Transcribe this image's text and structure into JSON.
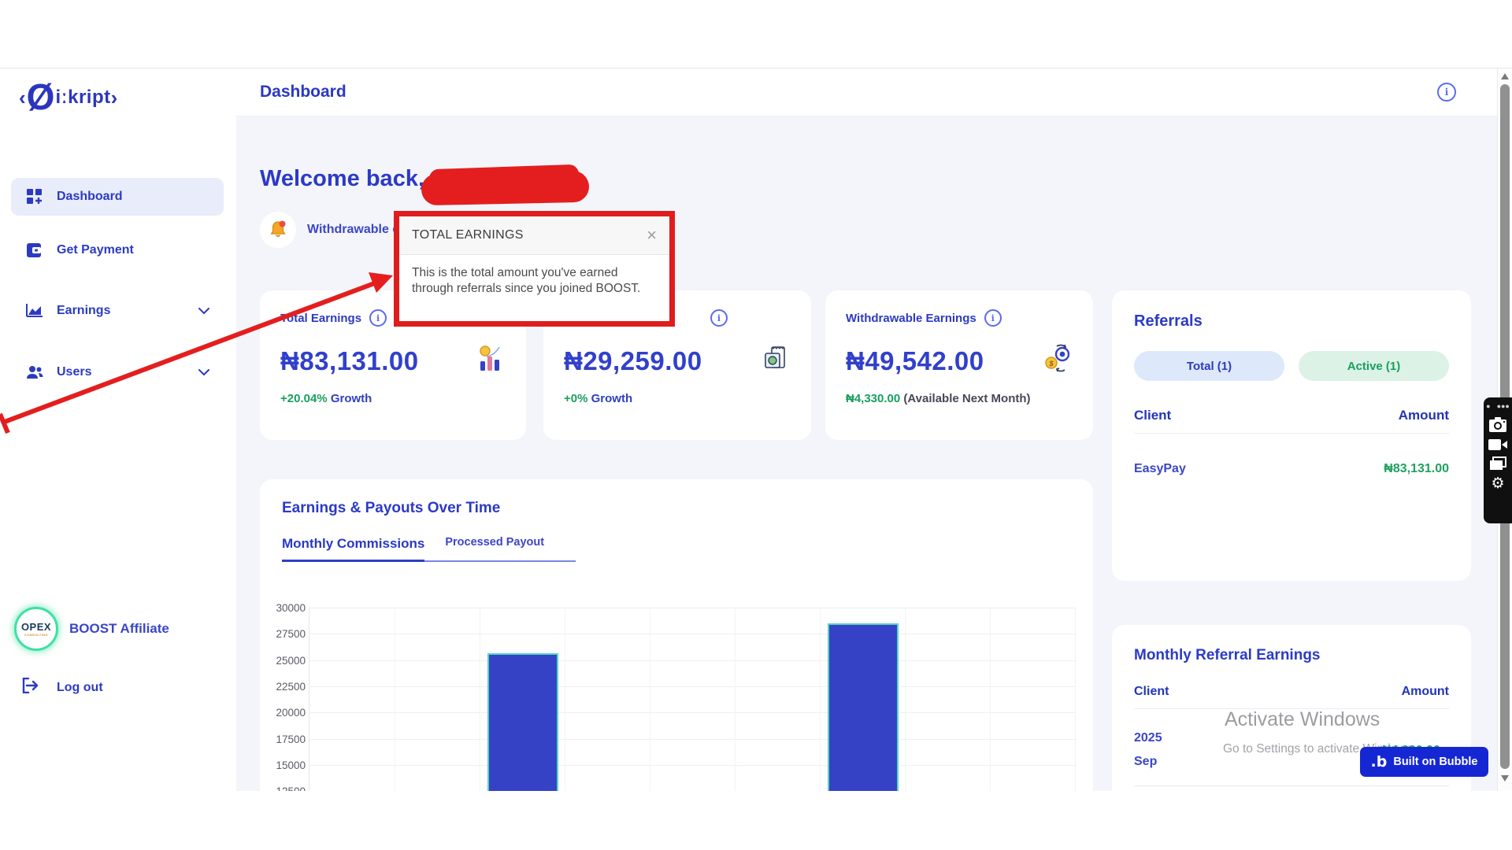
{
  "header": {
    "title": "Dashboard"
  },
  "sidebar": {
    "logo": {
      "open_angle": "‹",
      "symbol": "Ø",
      "word": "iːkript",
      "close_angle": "›"
    },
    "items": [
      {
        "label": "Dashboard"
      },
      {
        "label": "Get Payment"
      },
      {
        "label": "Earnings"
      },
      {
        "label": "Users"
      }
    ],
    "footer": {
      "brand": "BOOST Affiliate",
      "logo_line1": "OPEX",
      "logo_line2": "CONSULTING",
      "logout": "Log out"
    }
  },
  "welcome": {
    "greeting": "Welcome back,"
  },
  "notification": {
    "text": "Withdrawable e"
  },
  "tooltip": {
    "title": "TOTAL EARNINGS",
    "body": "This is the total amount you've earned through referrals since you joined BOOST.",
    "close": "×"
  },
  "stats": [
    {
      "label": "Total Earnings",
      "value": "₦83,131.00",
      "growth_value": "+20.04%",
      "growth_label": "Growth"
    },
    {
      "label": "",
      "value": "₦29,259.00",
      "growth_value": "+0%",
      "growth_label": "Growth"
    },
    {
      "label": "Withdrawable Earnings",
      "value": "₦49,542.00",
      "note_value": "₦4,330.00",
      "note_label": "(Available Next Month)"
    }
  ],
  "referrals": {
    "title": "Referrals",
    "total_pill": "Total (1)",
    "active_pill": "Active (1)",
    "col_client": "Client",
    "col_amount": "Amount",
    "rows": [
      {
        "client": "EasyPay",
        "amount": "₦83,131.00"
      }
    ]
  },
  "chart_card": {
    "title": "Earnings & Payouts Over Time",
    "tab_active": "Monthly Commissions",
    "tab_inactive": "Processed Payout"
  },
  "chart_data": {
    "type": "bar",
    "title": "Earnings & Payouts Over Time",
    "series_shown": "Monthly Commissions",
    "y_ticks": [
      30000,
      27500,
      25000,
      22500,
      20000,
      17500,
      15000,
      12500
    ],
    "ylim_visible": [
      12500,
      30000
    ],
    "total_columns": 9,
    "bars": [
      {
        "column_index": 3,
        "value": 25650
      },
      {
        "column_index": 7,
        "value": 28500
      }
    ],
    "x_tick_labels": "not visible (cut off at bottom of viewport)",
    "grid": true,
    "bar_color": "#3642c6",
    "bar_cap_color": "#52d6c3"
  },
  "monthly_referral": {
    "title": "Monthly Referral Earnings",
    "col_client": "Client",
    "col_amount": "Amount",
    "rows": [
      {
        "client_line1": "2025",
        "client_line2": "Sep",
        "amount": "₦4,330.00"
      },
      {
        "client_line1": "2025",
        "client_line2": "",
        "amount": ""
      }
    ]
  },
  "watermark": {
    "line1": "Activate Windows",
    "line2": "Go to Settings to activate Windows."
  },
  "bubble_badge": {
    "logo": ".b",
    "label": "Built on Bubble"
  },
  "colors": {
    "primary_blue": "#2c3ac2",
    "value_blue": "#3140cb",
    "green": "#17a05c",
    "annotation_red": "#e41e1e",
    "pill_blue_bg": "#dde9fb",
    "pill_green_bg": "#ddf2e7",
    "badge_bg": "#1527d3",
    "main_bg": "#f4f5fa"
  }
}
